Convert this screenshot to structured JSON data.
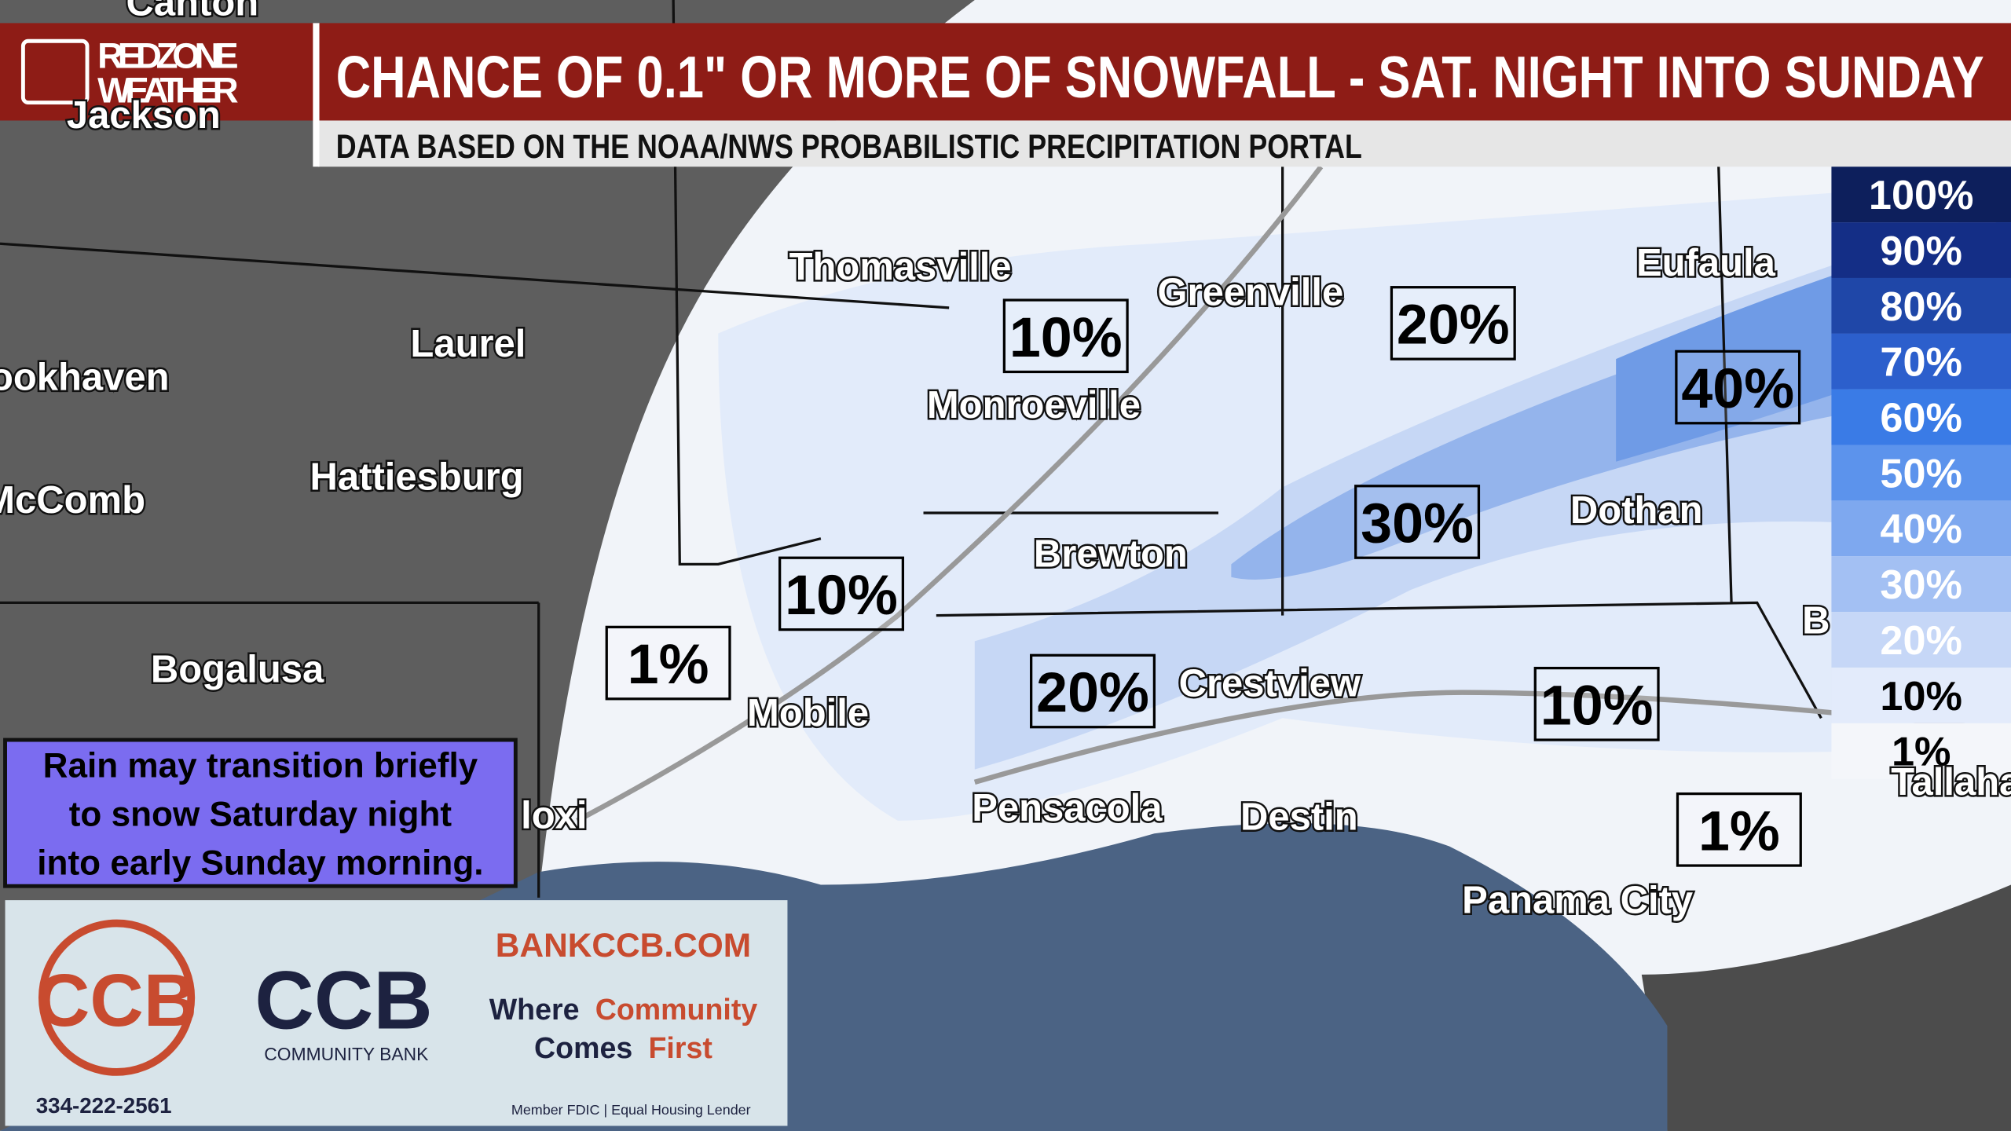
{
  "header": {
    "logo": [
      "REDZONE",
      "WEATHER"
    ],
    "title": "CHANCE OF 0.1\" OR MORE OF SNOWFALL - SAT. NIGHT INTO SUNDAY",
    "subtitle": "DATA BASED ON THE NOAA/NWS PROBABILISTIC PRECIPITATION PORTAL"
  },
  "map": {
    "cities": [
      "Canton",
      "Jackson",
      "Laurel",
      "ookhaven",
      "Hattiesburg",
      "McComb",
      "Bogalusa",
      "loxi",
      "Thomasville",
      "Monroeville",
      "Greenville",
      "Eufaula",
      "Dothan",
      "Brewton",
      "Mobile",
      "Crestview",
      "Pensacola",
      "Destin",
      "Panama City",
      "B",
      "Tallaha"
    ],
    "probabilities": [
      "10%",
      "20%",
      "40%",
      "30%",
      "10%",
      "1%",
      "20%",
      "10%",
      "1%"
    ]
  },
  "legend": [
    "100%",
    "90%",
    "80%",
    "70%",
    "60%",
    "50%",
    "40%",
    "30%",
    "20%",
    "10%",
    "1%"
  ],
  "note": [
    "Rain may transition briefly",
    "to snow Saturday night",
    "into early Sunday morning."
  ],
  "ad": {
    "logo": "CCB",
    "name": "COMMUNITY BANK",
    "website": "BANKCCB.COM",
    "tagline": [
      "Where",
      "Community",
      "Comes",
      "First"
    ],
    "phone": "334-222-2561",
    "disclaimer": "Member FDIC | Equal Housing Lender"
  }
}
